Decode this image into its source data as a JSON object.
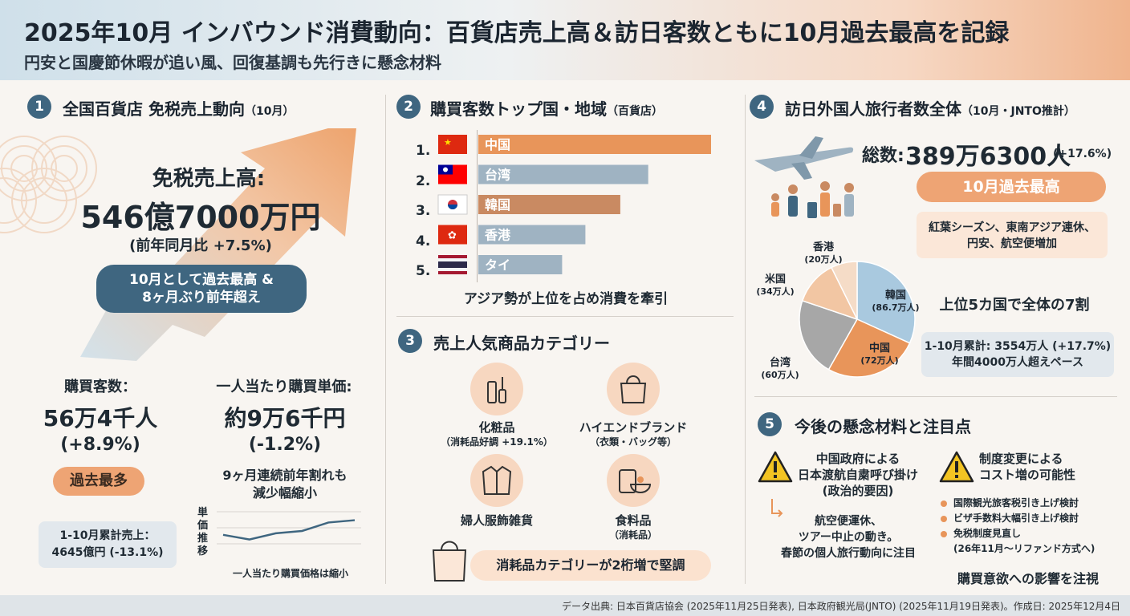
{
  "header": {
    "title": "2025年10月 インバウンド消費動向：百貨店売上高＆訪日客数ともに10月過去最高を記録",
    "subtitle": "円安と国慶節休暇が追い風、回復基調も先行きに懸念材料"
  },
  "section1": {
    "num": "1",
    "title": "全国百貨店 免税売上動向",
    "title_note": "（10月）",
    "sales_label": "免税売上高:",
    "sales_value": "546億7000万円",
    "sales_yoy": "(前年同月比 +7.5%)",
    "highlight_line1": "10月として過去最高 &",
    "highlight_line2": "8ヶ月ぶり前年超え",
    "buyers_label": "購買客数：",
    "buyers_value": "56万4千人",
    "buyers_yoy": "(+8.9%)",
    "buyers_badge": "過去最多",
    "cumulative_line1": "1-10月累計売上：",
    "cumulative_line2": "4645億円 (-13.1%)",
    "unit_label": "一人当たり購買単価:",
    "unit_value": "約9万6千円",
    "unit_yoy": "(-1.2%)",
    "unit_note1": "9ヶ月連続前年割れも",
    "unit_note2": "減少幅縮小",
    "mini_ylabel": "単価推移",
    "mini_caption": "一人当たり購買価格は縮小"
  },
  "section2": {
    "num": "2",
    "title": "購買客数トップ国・地域",
    "title_note": "（百貨店）",
    "ranks": [
      "1.",
      "2.",
      "3.",
      "4.",
      "5."
    ],
    "caption": "アジア勢が上位を占め消費を牽引"
  },
  "section3": {
    "num": "3",
    "title": "売上人気商品カテゴリー",
    "cat1_label": "化粧品",
    "cat1_note": "（消耗品好調 +19.1%）",
    "cat2_label": "ハイエンドブランド",
    "cat2_note": "（衣類・バッグ等）",
    "cat3_label": "婦人服飾雑貨",
    "cat4_label": "食料品",
    "cat4_note": "（消耗品）",
    "banner": "消耗品カテゴリーが2桁増で堅調"
  },
  "section4": {
    "num": "4",
    "title": "訪日外国人旅行者数全体",
    "title_note": "（10月・JNTO推計）",
    "total_label": "総数:",
    "total_value": "389万6300人",
    "total_yoy": "(+17.6%)",
    "record_badge": "10月過去最高",
    "factors_line1": "紅葉シーズン、東南アジア連休、",
    "factors_line2": "円安、航空便増加",
    "top5_note": "上位5カ国で全体の7割",
    "cumulative_line1": "1-10月累計: 3554万人 (+17.7%)",
    "cumulative_line2": "年間4000万人超えペース"
  },
  "section5": {
    "num": "5",
    "title": "今後の懸念材料と注目点",
    "risk1_line1": "中国政府による",
    "risk1_line2": "日本渡航自粛呼び掛け",
    "risk1_line3": "(政治的要因)",
    "risk1_effect1": "航空便運休、",
    "risk1_effect2": "ツアー中止の動き。",
    "risk1_effect3": "春節の個人旅行動向に注目",
    "risk2_line1": "制度変更による",
    "risk2_line2": "コスト増の可能性",
    "risk2_items": [
      "国際観光旅客税引き上げ検討",
      "ビザ手数料大幅引き上げ検討",
      "免税制度見直し"
    ],
    "risk2_sub": "(26年11月〜リファンド方式へ)",
    "conclusion": "購買意欲への影響を注視"
  },
  "footer": {
    "source": "データ出典: 日本百貨店協会 (2025年11月25日発表), 日本政府観光局(JNTO) (2025年11月19日発表)。作成日: 2025年12月4日"
  },
  "colors": {
    "navy": "#3f6680",
    "orange": "#e8955a",
    "slate": "#9fb3c2",
    "bar_orange": "#e8955a",
    "bar_blue": "#9fb3c2",
    "bar_brown": "#c98a62"
  },
  "chart_data": [
    {
      "type": "bar",
      "orientation": "horizontal",
      "categories": [
        "中国",
        "台湾",
        "韓国",
        "香港",
        "タイ"
      ],
      "values": [
        100,
        73,
        61,
        46,
        36
      ]
    },
    {
      "type": "pie",
      "categories": [
        "韓国",
        "中国",
        "台湾",
        "米国",
        "香港"
      ],
      "labels": [
        "(86.7万人)",
        "(72万人)",
        "(60万人)",
        "(34万人)",
        "(20万人)"
      ],
      "values": [
        86.7,
        72,
        60,
        34,
        20
      ],
      "colors": [
        "#a9c9df",
        "#e8955a",
        "#a7a7a7",
        "#f2c6a3",
        "#f5dcc7"
      ]
    },
    {
      "type": "line",
      "values": [
        3.0,
        2.4,
        3.2,
        3.5,
        4.6,
        4.9
      ]
    }
  ]
}
